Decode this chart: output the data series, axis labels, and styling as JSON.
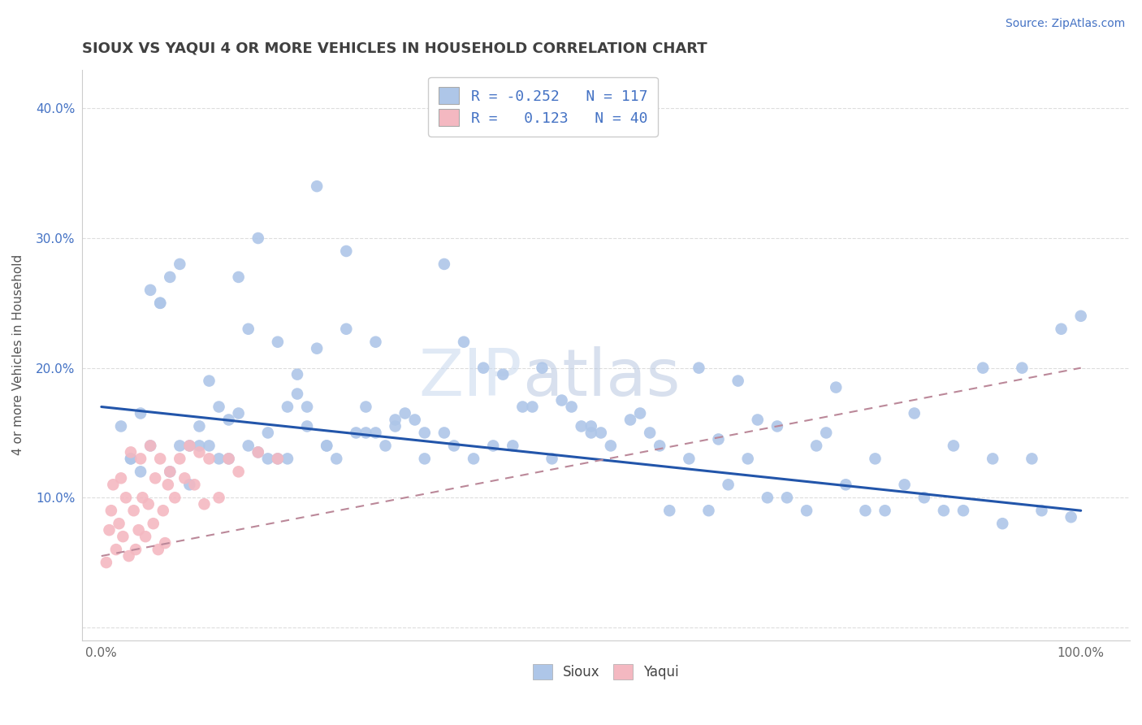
{
  "title": "SIOUX VS YAQUI 4 OR MORE VEHICLES IN HOUSEHOLD CORRELATION CHART",
  "source_text": "Source: ZipAtlas.com",
  "ylabel": "4 or more Vehicles in Household",
  "xlim": [
    -0.02,
    1.05
  ],
  "ylim": [
    -0.01,
    0.43
  ],
  "xtick_vals": [
    0.0,
    0.1,
    0.2,
    0.3,
    0.4,
    0.5,
    0.6,
    0.7,
    0.8,
    0.9,
    1.0
  ],
  "xtick_labels": [
    "0.0%",
    "",
    "",
    "",
    "",
    "",
    "",
    "",
    "",
    "",
    "100.0%"
  ],
  "ytick_vals": [
    0.0,
    0.1,
    0.2,
    0.3,
    0.4
  ],
  "ytick_labels": [
    "",
    "10.0%",
    "20.0%",
    "30.0%",
    "40.0%"
  ],
  "sioux_R": -0.252,
  "sioux_N": 117,
  "yaqui_R": 0.123,
  "yaqui_N": 40,
  "sioux_color": "#aec6e8",
  "yaqui_color": "#f4b8c1",
  "sioux_line_color": "#2255aa",
  "yaqui_line_color": "#cc4466",
  "grid_color": "#dddddd",
  "title_color": "#404040",
  "sioux_line_x0": 0.0,
  "sioux_line_y0": 0.17,
  "sioux_line_x1": 1.0,
  "sioux_line_y1": 0.09,
  "yaqui_line_x0": 0.0,
  "yaqui_line_y0": 0.055,
  "yaqui_line_x1": 1.0,
  "yaqui_line_y1": 0.2,
  "sioux_x": [
    0.02,
    0.03,
    0.04,
    0.05,
    0.06,
    0.07,
    0.08,
    0.09,
    0.1,
    0.11,
    0.12,
    0.13,
    0.14,
    0.15,
    0.16,
    0.17,
    0.18,
    0.19,
    0.2,
    0.21,
    0.22,
    0.23,
    0.25,
    0.27,
    0.28,
    0.3,
    0.32,
    0.33,
    0.35,
    0.36,
    0.38,
    0.4,
    0.42,
    0.44,
    0.46,
    0.48,
    0.5,
    0.52,
    0.54,
    0.56,
    0.58,
    0.6,
    0.62,
    0.64,
    0.66,
    0.68,
    0.7,
    0.72,
    0.74,
    0.76,
    0.78,
    0.8,
    0.82,
    0.84,
    0.86,
    0.88,
    0.9,
    0.92,
    0.94,
    0.96,
    0.98,
    1.0,
    0.03,
    0.05,
    0.07,
    0.09,
    0.11,
    0.13,
    0.15,
    0.17,
    0.19,
    0.21,
    0.23,
    0.25,
    0.27,
    0.29,
    0.31,
    0.33,
    0.35,
    0.37,
    0.39,
    0.41,
    0.43,
    0.45,
    0.47,
    0.49,
    0.51,
    0.55,
    0.57,
    0.61,
    0.63,
    0.65,
    0.67,
    0.69,
    0.73,
    0.75,
    0.79,
    0.83,
    0.87,
    0.91,
    0.95,
    0.99,
    0.04,
    0.06,
    0.08,
    0.1,
    0.12,
    0.14,
    0.16,
    0.18,
    0.2,
    0.22,
    0.24,
    0.26,
    0.28,
    0.3,
    0.5
  ],
  "sioux_y": [
    0.155,
    0.13,
    0.165,
    0.26,
    0.25,
    0.27,
    0.28,
    0.14,
    0.14,
    0.19,
    0.17,
    0.16,
    0.27,
    0.23,
    0.3,
    0.15,
    0.22,
    0.17,
    0.18,
    0.17,
    0.34,
    0.14,
    0.23,
    0.17,
    0.15,
    0.16,
    0.16,
    0.15,
    0.28,
    0.14,
    0.13,
    0.14,
    0.14,
    0.17,
    0.13,
    0.17,
    0.15,
    0.14,
    0.16,
    0.15,
    0.09,
    0.13,
    0.09,
    0.11,
    0.13,
    0.1,
    0.1,
    0.09,
    0.15,
    0.11,
    0.09,
    0.09,
    0.11,
    0.1,
    0.09,
    0.09,
    0.2,
    0.08,
    0.2,
    0.09,
    0.23,
    0.24,
    0.13,
    0.14,
    0.12,
    0.11,
    0.14,
    0.13,
    0.14,
    0.13,
    0.13,
    0.155,
    0.14,
    0.29,
    0.15,
    0.14,
    0.165,
    0.13,
    0.15,
    0.22,
    0.2,
    0.195,
    0.17,
    0.2,
    0.175,
    0.155,
    0.15,
    0.165,
    0.14,
    0.2,
    0.145,
    0.19,
    0.16,
    0.155,
    0.14,
    0.185,
    0.13,
    0.165,
    0.14,
    0.13,
    0.13,
    0.085,
    0.12,
    0.25,
    0.14,
    0.155,
    0.13,
    0.165,
    0.135,
    0.13,
    0.195,
    0.215,
    0.13,
    0.15,
    0.22,
    0.155,
    0.155
  ],
  "yaqui_x": [
    0.005,
    0.008,
    0.01,
    0.012,
    0.015,
    0.018,
    0.02,
    0.022,
    0.025,
    0.028,
    0.03,
    0.033,
    0.035,
    0.038,
    0.04,
    0.042,
    0.045,
    0.048,
    0.05,
    0.053,
    0.055,
    0.058,
    0.06,
    0.063,
    0.065,
    0.068,
    0.07,
    0.075,
    0.08,
    0.085,
    0.09,
    0.095,
    0.1,
    0.105,
    0.11,
    0.12,
    0.13,
    0.14,
    0.16,
    0.18
  ],
  "yaqui_y": [
    0.05,
    0.075,
    0.09,
    0.11,
    0.06,
    0.08,
    0.115,
    0.07,
    0.1,
    0.055,
    0.135,
    0.09,
    0.06,
    0.075,
    0.13,
    0.1,
    0.07,
    0.095,
    0.14,
    0.08,
    0.115,
    0.06,
    0.13,
    0.09,
    0.065,
    0.11,
    0.12,
    0.1,
    0.13,
    0.115,
    0.14,
    0.11,
    0.135,
    0.095,
    0.13,
    0.1,
    0.13,
    0.12,
    0.135,
    0.13
  ]
}
